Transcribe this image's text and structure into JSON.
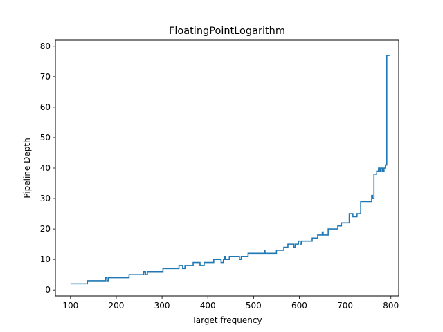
{
  "chart_data": {
    "type": "line",
    "title": "FloatingPointLogarithm",
    "xlabel": "Target frequency",
    "ylabel": "Pipeline Depth",
    "xlim": [
      67,
      817
    ],
    "ylim": [
      -2,
      82
    ],
    "xticks": [
      100,
      200,
      300,
      400,
      500,
      600,
      700,
      800
    ],
    "yticks": [
      0,
      10,
      20,
      30,
      40,
      50,
      60,
      70,
      80
    ],
    "grid": false,
    "legend": "none",
    "series": [
      {
        "color": "#1f77b4",
        "points": [
          [
            100,
            2
          ],
          [
            137,
            2
          ],
          [
            137,
            3
          ],
          [
            177,
            3
          ],
          [
            177,
            4
          ],
          [
            180,
            4
          ],
          [
            180,
            3
          ],
          [
            183,
            3
          ],
          [
            183,
            4
          ],
          [
            228,
            4
          ],
          [
            228,
            5
          ],
          [
            260,
            5
          ],
          [
            260,
            6
          ],
          [
            264,
            6
          ],
          [
            264,
            5
          ],
          [
            268,
            5
          ],
          [
            268,
            6
          ],
          [
            302,
            6
          ],
          [
            302,
            7
          ],
          [
            337,
            7
          ],
          [
            337,
            8
          ],
          [
            345,
            8
          ],
          [
            345,
            7
          ],
          [
            350,
            7
          ],
          [
            350,
            8
          ],
          [
            368,
            8
          ],
          [
            368,
            9
          ],
          [
            383,
            9
          ],
          [
            383,
            8
          ],
          [
            392,
            8
          ],
          [
            392,
            9
          ],
          [
            413,
            9
          ],
          [
            413,
            10
          ],
          [
            429,
            10
          ],
          [
            429,
            9
          ],
          [
            434,
            9
          ],
          [
            434,
            10
          ],
          [
            437,
            10
          ],
          [
            437,
            11
          ],
          [
            439,
            11
          ],
          [
            439,
            10
          ],
          [
            447,
            10
          ],
          [
            447,
            11
          ],
          [
            469,
            11
          ],
          [
            469,
            10
          ],
          [
            473,
            10
          ],
          [
            473,
            11
          ],
          [
            488,
            11
          ],
          [
            488,
            12
          ],
          [
            524,
            12
          ],
          [
            524,
            13
          ],
          [
            525,
            13
          ],
          [
            525,
            12
          ],
          [
            550,
            12
          ],
          [
            550,
            13
          ],
          [
            566,
            13
          ],
          [
            566,
            14
          ],
          [
            575,
            14
          ],
          [
            575,
            15
          ],
          [
            588,
            15
          ],
          [
            588,
            14
          ],
          [
            591,
            14
          ],
          [
            591,
            15
          ],
          [
            598,
            15
          ],
          [
            598,
            16
          ],
          [
            602,
            16
          ],
          [
            602,
            15
          ],
          [
            605,
            15
          ],
          [
            605,
            16
          ],
          [
            628,
            16
          ],
          [
            628,
            17
          ],
          [
            640,
            17
          ],
          [
            640,
            18
          ],
          [
            650,
            18
          ],
          [
            650,
            19
          ],
          [
            652,
            19
          ],
          [
            652,
            18
          ],
          [
            663,
            18
          ],
          [
            663,
            20
          ],
          [
            684,
            20
          ],
          [
            684,
            21
          ],
          [
            692,
            21
          ],
          [
            692,
            22
          ],
          [
            709,
            22
          ],
          [
            709,
            25
          ],
          [
            717,
            25
          ],
          [
            717,
            24
          ],
          [
            726,
            24
          ],
          [
            726,
            25
          ],
          [
            734,
            25
          ],
          [
            734,
            29
          ],
          [
            758,
            29
          ],
          [
            758,
            31
          ],
          [
            760,
            31
          ],
          [
            760,
            30
          ],
          [
            763,
            30
          ],
          [
            763,
            38
          ],
          [
            769,
            38
          ],
          [
            769,
            39
          ],
          [
            773,
            39
          ],
          [
            773,
            40
          ],
          [
            776,
            40
          ],
          [
            776,
            39
          ],
          [
            778,
            39
          ],
          [
            778,
            40
          ],
          [
            781,
            40
          ],
          [
            781,
            39
          ],
          [
            785,
            39
          ],
          [
            785,
            40
          ],
          [
            788,
            40
          ],
          [
            788,
            41
          ],
          [
            791,
            41
          ],
          [
            791,
            77
          ],
          [
            797,
            77
          ]
        ]
      }
    ]
  }
}
